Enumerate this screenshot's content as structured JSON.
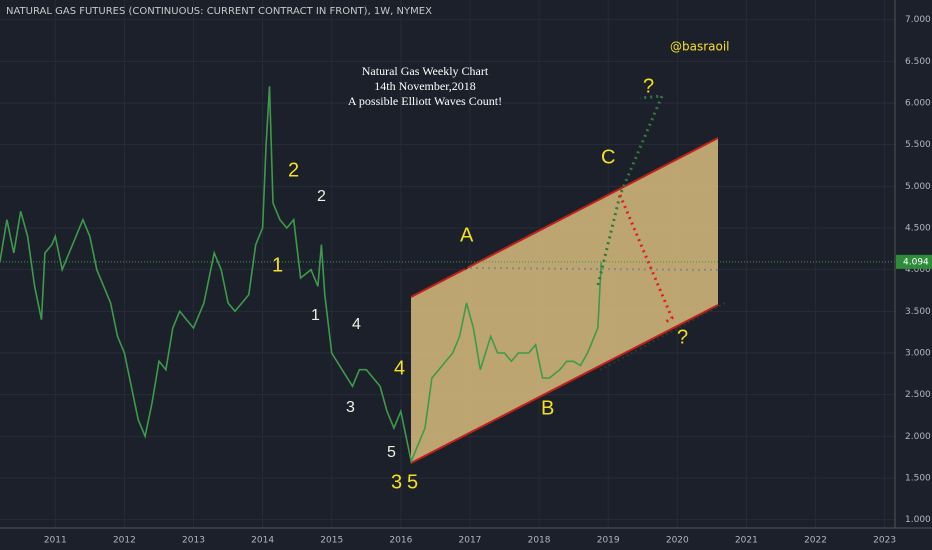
{
  "chart_data": {
    "type": "line",
    "title": "NATURAL GAS FUTURES (CONTINUOUS: CURRENT CONTRACT IN FRONT), 1W, NYMEX",
    "x": [
      2010.2,
      2010.3,
      2010.4,
      2010.5,
      2010.6,
      2010.7,
      2010.8,
      2010.85,
      2010.95,
      2011.0,
      2011.1,
      2011.2,
      2011.3,
      2011.4,
      2011.5,
      2011.6,
      2011.7,
      2011.8,
      2011.9,
      2012.0,
      2012.1,
      2012.2,
      2012.3,
      2012.4,
      2012.5,
      2012.6,
      2012.7,
      2012.8,
      2012.9,
      2013.0,
      2013.15,
      2013.3,
      2013.4,
      2013.5,
      2013.6,
      2013.7,
      2013.8,
      2013.9,
      2014.0,
      2014.05,
      2014.1,
      2014.15,
      2014.25,
      2014.35,
      2014.45,
      2014.55,
      2014.7,
      2014.8,
      2014.85,
      2014.9,
      2015.0,
      2015.15,
      2015.3,
      2015.4,
      2015.5,
      2015.6,
      2015.7,
      2015.8,
      2015.9,
      2016.0,
      2016.15,
      2016.25,
      2016.35,
      2016.45,
      2016.55,
      2016.65,
      2016.75,
      2016.85,
      2016.95,
      2017.05,
      2017.15,
      2017.3,
      2017.4,
      2017.5,
      2017.6,
      2017.7,
      2017.85,
      2017.95,
      2018.05,
      2018.15,
      2018.3,
      2018.4,
      2018.5,
      2018.6,
      2018.7,
      2018.8,
      2018.85,
      2018.9
    ],
    "series": [
      {
        "name": "Natural Gas",
        "color": "#3e9a4a",
        "values": [
          4.1,
          4.6,
          4.2,
          4.7,
          4.4,
          3.8,
          3.4,
          4.2,
          4.3,
          4.4,
          4.0,
          4.2,
          4.4,
          4.6,
          4.4,
          4.0,
          3.8,
          3.6,
          3.2,
          3.0,
          2.6,
          2.2,
          2.0,
          2.4,
          2.9,
          2.8,
          3.3,
          3.5,
          3.4,
          3.3,
          3.6,
          4.2,
          4.0,
          3.6,
          3.5,
          3.6,
          3.7,
          4.3,
          4.5,
          5.5,
          6.2,
          4.8,
          4.6,
          4.5,
          4.6,
          3.9,
          4.0,
          3.8,
          4.3,
          3.7,
          3.0,
          2.8,
          2.6,
          2.8,
          2.8,
          2.7,
          2.6,
          2.3,
          2.1,
          2.3,
          1.7,
          1.9,
          2.1,
          2.7,
          2.8,
          2.9,
          3.0,
          3.2,
          3.6,
          3.3,
          2.8,
          3.2,
          3.0,
          3.0,
          2.9,
          3.0,
          3.0,
          3.1,
          2.7,
          2.7,
          2.8,
          2.9,
          2.9,
          2.85,
          3.0,
          3.2,
          3.3,
          4.09
        ]
      }
    ],
    "xlim": [
      2010.2,
      2023.15
    ],
    "xticks": [
      2011,
      2012,
      2013,
      2014,
      2015,
      2016,
      2017,
      2018,
      2019,
      2020,
      2021,
      2022,
      2023
    ],
    "ylim": [
      0.9,
      7.2
    ],
    "yticks": [
      {
        "value": 1,
        "label": "1.000"
      },
      {
        "value": 1.5,
        "label": "1.500"
      },
      {
        "value": 2,
        "label": "2.000"
      },
      {
        "value": 2.5,
        "label": "2.500"
      },
      {
        "value": 3,
        "label": "3.000"
      },
      {
        "value": 3.5,
        "label": "3.500"
      },
      {
        "value": 4,
        "label": "4.000"
      },
      {
        "value": 4.5,
        "label": "4.500"
      },
      {
        "value": 5,
        "label": "5.000"
      },
      {
        "value": 5.5,
        "label": "5.500"
      },
      {
        "value": 6,
        "label": "6.000"
      },
      {
        "value": 6.5,
        "label": "6.500"
      },
      {
        "value": 7,
        "label": "7.000"
      }
    ],
    "last_price": {
      "value": 4.094,
      "label": "4.094"
    },
    "grid": true,
    "annotations": [
      "Natural Gas Weekly Chart",
      "14th November,2018",
      "A possible Elliott Waves Count!",
      "@basraoil",
      "2",
      "2",
      "1",
      "1",
      "4",
      "3",
      "4",
      "5",
      "3",
      "5",
      "A",
      "B",
      "C",
      "?",
      "?"
    ]
  }
}
